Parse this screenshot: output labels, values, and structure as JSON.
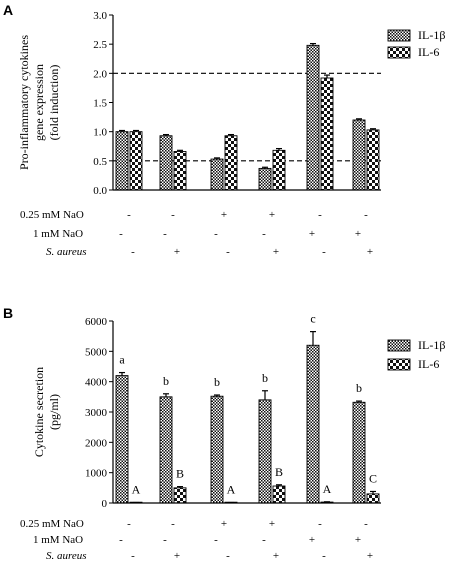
{
  "chart_data": [
    {
      "panel": "A",
      "type": "bar",
      "ylabel_lines": [
        "Pro-inflammatory cytokines",
        "gene expression",
        "(fold induction)"
      ],
      "ylim": [
        0,
        3.0
      ],
      "yticks": [
        "0.0",
        "0.5",
        "1.0",
        "1.5",
        "2.0",
        "2.5",
        "3.0"
      ],
      "reference_lines": [
        0.5,
        2.0
      ],
      "groups": 6,
      "series": [
        {
          "name": "IL-1β",
          "pattern": "checker-dense",
          "values": [
            1.0,
            0.93,
            0.53,
            0.37,
            2.48,
            1.2
          ],
          "errors": [
            0.02,
            0.02,
            0.02,
            0.02,
            0.03,
            0.02
          ],
          "labels": [
            "",
            "",
            "",
            "",
            "",
            ""
          ]
        },
        {
          "name": "IL-6",
          "pattern": "checker-large",
          "values": [
            1.0,
            0.66,
            0.93,
            0.68,
            1.92,
            1.03
          ],
          "errors": [
            0.02,
            0.02,
            0.02,
            0.03,
            0.05,
            0.02
          ],
          "labels": [
            "",
            "",
            "",
            "",
            "",
            ""
          ]
        }
      ],
      "conditions": [
        {
          "label": "0.25 mM NaO",
          "italic": false,
          "marks": [
            "-",
            "-",
            "+",
            "+",
            "-",
            "-"
          ]
        },
        {
          "label": "1 mM NaO",
          "italic": false,
          "marks": [
            "-",
            "-",
            "-",
            "-",
            "+",
            "+"
          ]
        },
        {
          "label": "S. aureus",
          "italic": true,
          "marks": [
            "-",
            "+",
            "-",
            "+",
            "-",
            "+"
          ]
        }
      ]
    },
    {
      "panel": "B",
      "type": "bar",
      "ylabel_lines": [
        "Cytokine secretion",
        "(pg/ml)"
      ],
      "ylim": [
        0,
        6000
      ],
      "yticks": [
        "0",
        "1000",
        "2000",
        "3000",
        "4000",
        "5000",
        "6000"
      ],
      "reference_lines": [],
      "groups": 6,
      "series": [
        {
          "name": "IL-1β",
          "pattern": "checker-dense",
          "values": [
            4200,
            3500,
            3520,
            3400,
            5200,
            3320
          ],
          "errors": [
            100,
            100,
            40,
            300,
            450,
            40
          ],
          "labels": [
            "a",
            "b",
            "b",
            "b",
            "c",
            "b"
          ]
        },
        {
          "name": "IL-6",
          "pattern": "checker-large",
          "values": [
            10,
            500,
            10,
            560,
            30,
            300
          ],
          "errors": [
            5,
            40,
            5,
            40,
            10,
            80
          ],
          "labels": [
            "A",
            "B",
            "A",
            "B",
            "A",
            "C"
          ]
        }
      ],
      "conditions": [
        {
          "label": "0.25 mM NaO",
          "italic": false,
          "marks": [
            "-",
            "-",
            "+",
            "+",
            "-",
            "-"
          ]
        },
        {
          "label": "1 mM NaO",
          "italic": false,
          "marks": [
            "-",
            "-",
            "-",
            "-",
            "+",
            "+"
          ]
        },
        {
          "label": "S. aureus",
          "italic": true,
          "marks": [
            "-",
            "+",
            "-",
            "+",
            "-",
            "+"
          ]
        }
      ]
    }
  ]
}
